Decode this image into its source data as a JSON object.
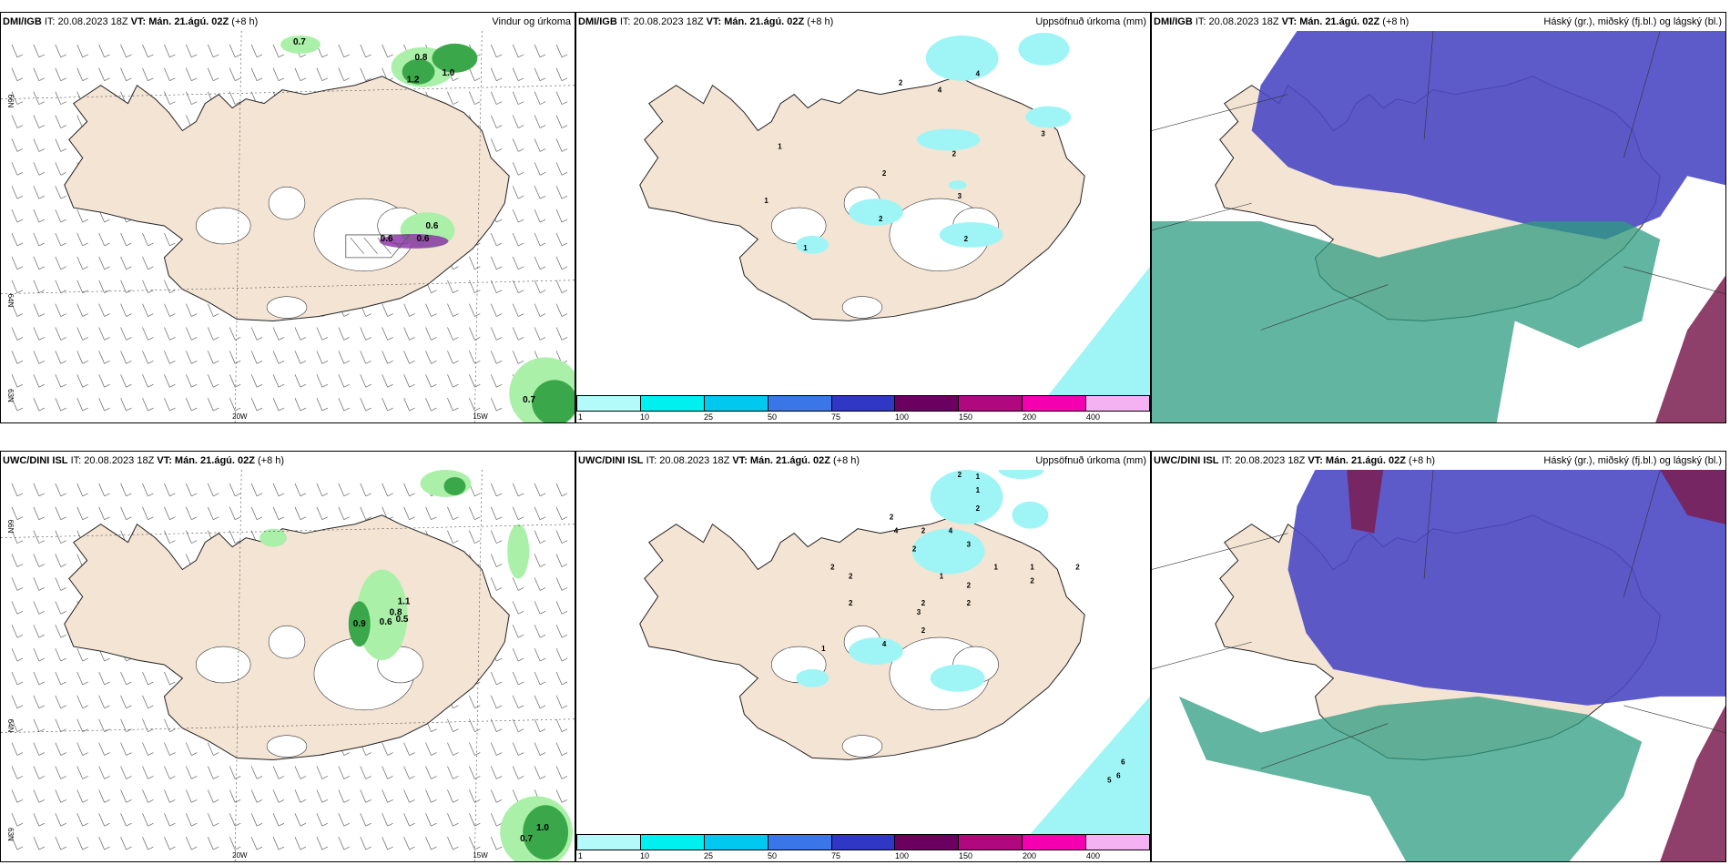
{
  "panels": {
    "p1": {
      "model": "DMI/IGB",
      "it": "IT: 20.08.2023 18Z",
      "vt_label": "VT:",
      "vt": "Mán. 21.ágú. 02Z",
      "lead": "(+8 h)",
      "title": "Vindur og úrkoma"
    },
    "p2": {
      "model": "DMI/IGB",
      "it": "IT: 20.08.2023 18Z",
      "vt_label": "VT:",
      "vt": "Mán. 21.ágú. 02Z",
      "lead": "(+8 h)",
      "title": "Uppsöfnuð úrkoma (mm)"
    },
    "p3": {
      "model": "DMI/IGB",
      "it": "IT: 20.08.2023 18Z",
      "vt_label": "VT:",
      "vt": "Mán. 21.ágú. 02Z",
      "lead": "(+8 h)",
      "title": "Háský (gr.), miðský (fj.bl.) og lágský (bl.)"
    },
    "p4": {
      "model": "UWC/DINI ISL",
      "it": "IT: 20.08.2023 18Z",
      "vt_label": "VT:",
      "vt": "Mán. 21.ágú. 02Z",
      "lead": "(+8 h)",
      "title": ""
    },
    "p5": {
      "model": "UWC/DINI ISL",
      "it": "IT: 20.08.2023 18Z",
      "vt_label": "VT:",
      "vt": "Mán. 21.ágú. 02Z",
      "lead": "(+8 h)",
      "title": "Uppsöfnuð úrkoma (mm)"
    },
    "p6": {
      "model": "UWC/DINI ISL",
      "it": "IT: 20.08.2023 18Z",
      "vt_label": "VT:",
      "vt": "Mán. 21.ágú. 02Z",
      "lead": "(+8 h)",
      "title": "Háský (gr.), miðský (fj.bl.) og lágský (bl.)"
    }
  },
  "axis": {
    "lat66": "66N",
    "lat64": "64N",
    "lat63": "63N",
    "lon20": "20W",
    "lon15": "15W"
  },
  "wind_values_top": [
    "0.7",
    "0.8",
    "1.2",
    "1.0",
    "0.6",
    "0.6",
    "0.6",
    "0.7"
  ],
  "wind_values_bottom": [
    "1.1",
    "0.8",
    "0.9",
    "0.6",
    "0.5",
    "1.0",
    "0.7"
  ],
  "precip_values_top": [
    "4",
    "2",
    "4",
    "3",
    "2",
    "3",
    "1",
    "1",
    "2",
    "1",
    "2",
    "2"
  ],
  "precip_values_bottom": [
    "2",
    "1",
    "1",
    "2",
    "2",
    "4",
    "2",
    "2",
    "4",
    "3",
    "1",
    "1",
    "2",
    "2",
    "1",
    "2",
    "2",
    "2",
    "2",
    "4",
    "2",
    "2",
    "2",
    "1",
    "3",
    "6",
    "6",
    "5"
  ],
  "colorbar": {
    "labels": [
      "1",
      "10",
      "25",
      "50",
      "75",
      "100",
      "150",
      "200",
      "400"
    ],
    "colors": [
      "#b3fbfb",
      "#00f0f0",
      "#00c8ef",
      "#3a76e8",
      "#2f37c4",
      "#6b0060",
      "#b0087f",
      "#f400b0",
      "#f5b2f3"
    ]
  },
  "colors": {
    "land": "#f4e4d4",
    "ice": "#ffffff",
    "high_cloud": "#2e9c80",
    "mid_cloud": "#4b48c4",
    "low_cloud": "#7a1d50",
    "precip_light": "#aaf0a8",
    "precip_mid": "#3aa84a",
    "precip_dark": "#1f7a36",
    "purple_precip": "#8b2aa8",
    "sea_ice": "#9ff5f5"
  }
}
